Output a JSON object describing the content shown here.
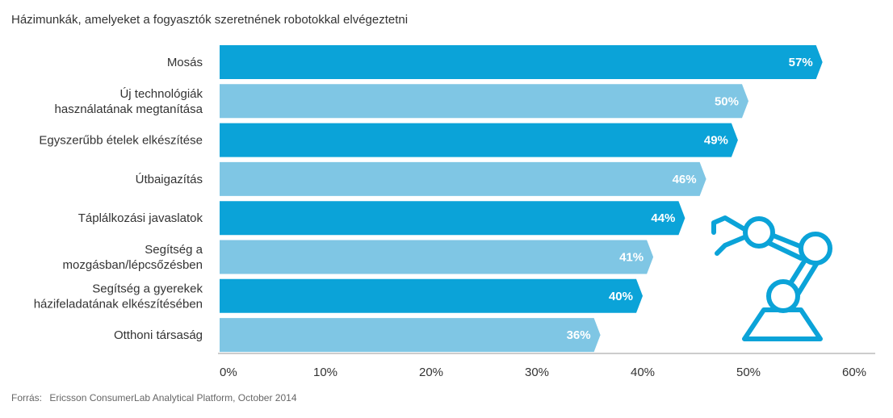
{
  "chart_data": {
    "type": "bar",
    "orientation": "horizontal",
    "title": "Házimunkák, amelyeket a fogyasztók szeretnének robotokkal elvégeztetni",
    "categories": [
      [
        "Mosás"
      ],
      [
        "Új technológiák",
        "használatának megtanítása"
      ],
      [
        "Egyszerűbb ételek elkészítése"
      ],
      [
        "Útbaigazítás"
      ],
      [
        "Táplálkozási javaslatok"
      ],
      [
        "Segítség a",
        "mozgásban/lépcsőzésben"
      ],
      [
        "Segítség a gyerekek",
        "házifeladatának elkészítésében"
      ],
      [
        "Otthoni társaság"
      ]
    ],
    "values": [
      57,
      50,
      49,
      46,
      44,
      41,
      40,
      36
    ],
    "value_labels": [
      "57%",
      "50%",
      "49%",
      "46%",
      "44%",
      "41%",
      "40%",
      "36%"
    ],
    "xlim": [
      0,
      60
    ],
    "ticks": [
      0,
      10,
      20,
      30,
      40,
      50,
      60
    ],
    "tick_labels": [
      "0%",
      "10%",
      "20%",
      "30%",
      "40%",
      "50%",
      "60%"
    ],
    "grid": false,
    "colors": [
      "#0ba3d8",
      "#7fc6e4"
    ]
  },
  "source": {
    "label": "Forrás:",
    "text": "Ericsson ConsumerLab Analytical Platform, October 2014"
  },
  "decoration": {
    "icon": "robot-arm-icon",
    "color": "#0ba3d8"
  }
}
